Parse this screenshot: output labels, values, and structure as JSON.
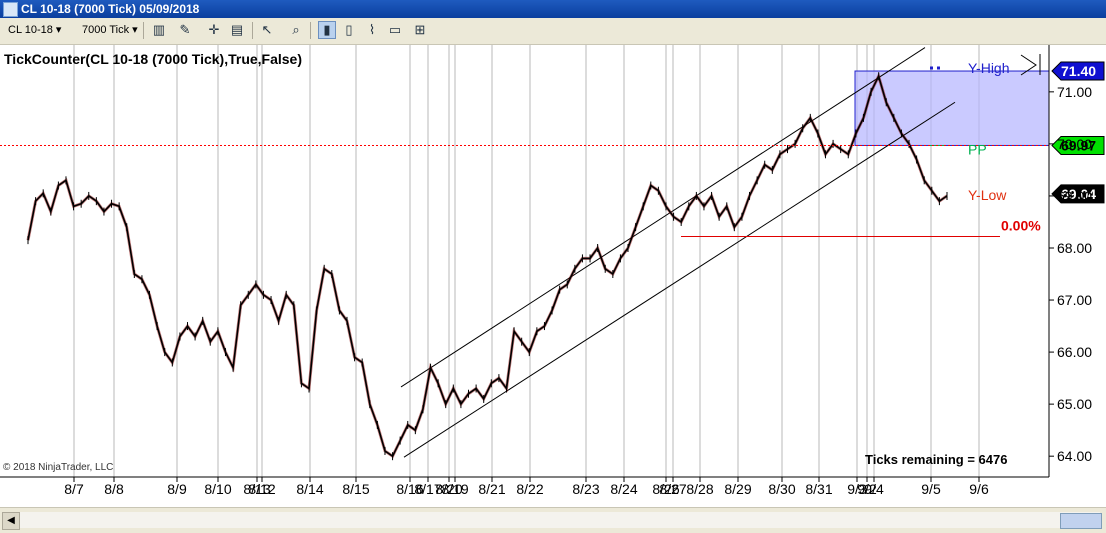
{
  "window": {
    "title": "CL 10-18 (7000 Tick)  05/09/2018"
  },
  "toolbar": {
    "instrument": "CL 10-18",
    "interval": "7000 Tick"
  },
  "chart_data": {
    "type": "line",
    "title": "TickCounter(CL 10-18 (7000 Tick),True,False)",
    "copyright": "© 2018 NinjaTrader, LLC",
    "ticks_remaining": "Ticks remaining = 6476",
    "ylim": [
      63.6,
      71.9
    ],
    "y_ticks": [
      "71.00",
      "70.00",
      "69.00",
      "68.00",
      "67.00",
      "66.00",
      "65.00",
      "64.00"
    ],
    "x_labels": [
      "8/7",
      "8/8",
      "8/9",
      "8/10",
      "8/13",
      "8/12",
      "8/14",
      "8/15",
      "8/16",
      "8/17",
      "8/20",
      "8/19",
      "8/21",
      "8/22",
      "8/23",
      "8/24",
      "8/26",
      "8/27",
      "8/28",
      "8/29",
      "8/30",
      "8/31",
      "9/3",
      "9/2",
      "9/4",
      "9/5",
      "9/6"
    ],
    "series": [
      {
        "values": [
          68.15,
          68.9,
          69.05,
          68.7,
          69.2,
          69.3,
          68.8,
          68.85,
          69.0,
          68.9,
          68.7,
          68.85,
          68.8,
          68.4,
          67.5,
          67.4,
          67.1,
          66.5,
          66.0,
          65.8,
          66.3,
          66.5,
          66.3,
          66.6,
          66.2,
          66.4,
          66.0,
          65.7,
          66.9,
          67.1,
          67.3,
          67.1,
          67.0,
          66.6,
          67.1,
          66.9,
          65.4,
          65.3,
          66.8,
          67.6,
          67.5,
          66.8,
          66.6,
          65.9,
          65.8,
          65.0,
          64.6,
          64.1,
          64.0,
          64.3,
          64.6,
          64.5,
          64.9,
          65.7,
          65.4,
          65.0,
          65.3,
          65.0,
          65.2,
          65.3,
          65.1,
          65.4,
          65.5,
          65.3,
          66.4,
          66.2,
          66.0,
          66.4,
          66.5,
          66.8,
          67.2,
          67.3,
          67.6,
          67.8,
          67.8,
          68.0,
          67.6,
          67.5,
          67.8,
          68.0,
          68.4,
          68.8,
          69.2,
          69.1,
          68.8,
          68.6,
          68.5,
          68.8,
          69.0,
          68.8,
          69.0,
          68.6,
          68.8,
          68.4,
          68.6,
          69.0,
          69.3,
          69.6,
          69.5,
          69.8,
          69.9,
          70.0,
          70.3,
          70.5,
          70.2,
          69.8,
          70.0,
          69.9,
          69.8,
          70.2,
          70.5,
          71.0,
          71.3,
          70.8,
          70.5,
          70.2,
          70.0,
          69.7,
          69.3,
          69.1,
          68.9,
          69.0
        ]
      }
    ],
    "annotations": [
      {
        "label": "Y-High",
        "value": 71.4,
        "tag": "71.40",
        "color": "#2020cc"
      },
      {
        "label": "PP",
        "value": 69.97,
        "tag": "69.97",
        "color": "#00b050"
      },
      {
        "label": "Y-Low",
        "value": 69.04,
        "tag": "69.04",
        "color": "#e03010"
      },
      {
        "label": "0.00%",
        "value": 68.22,
        "color": "#e00000"
      }
    ],
    "last_price_tag": "69.04",
    "colors": {
      "price": "#000000",
      "down_fill": "#8b0000",
      "box": "#b4b4ff",
      "pp_line": "#ff0000"
    }
  }
}
